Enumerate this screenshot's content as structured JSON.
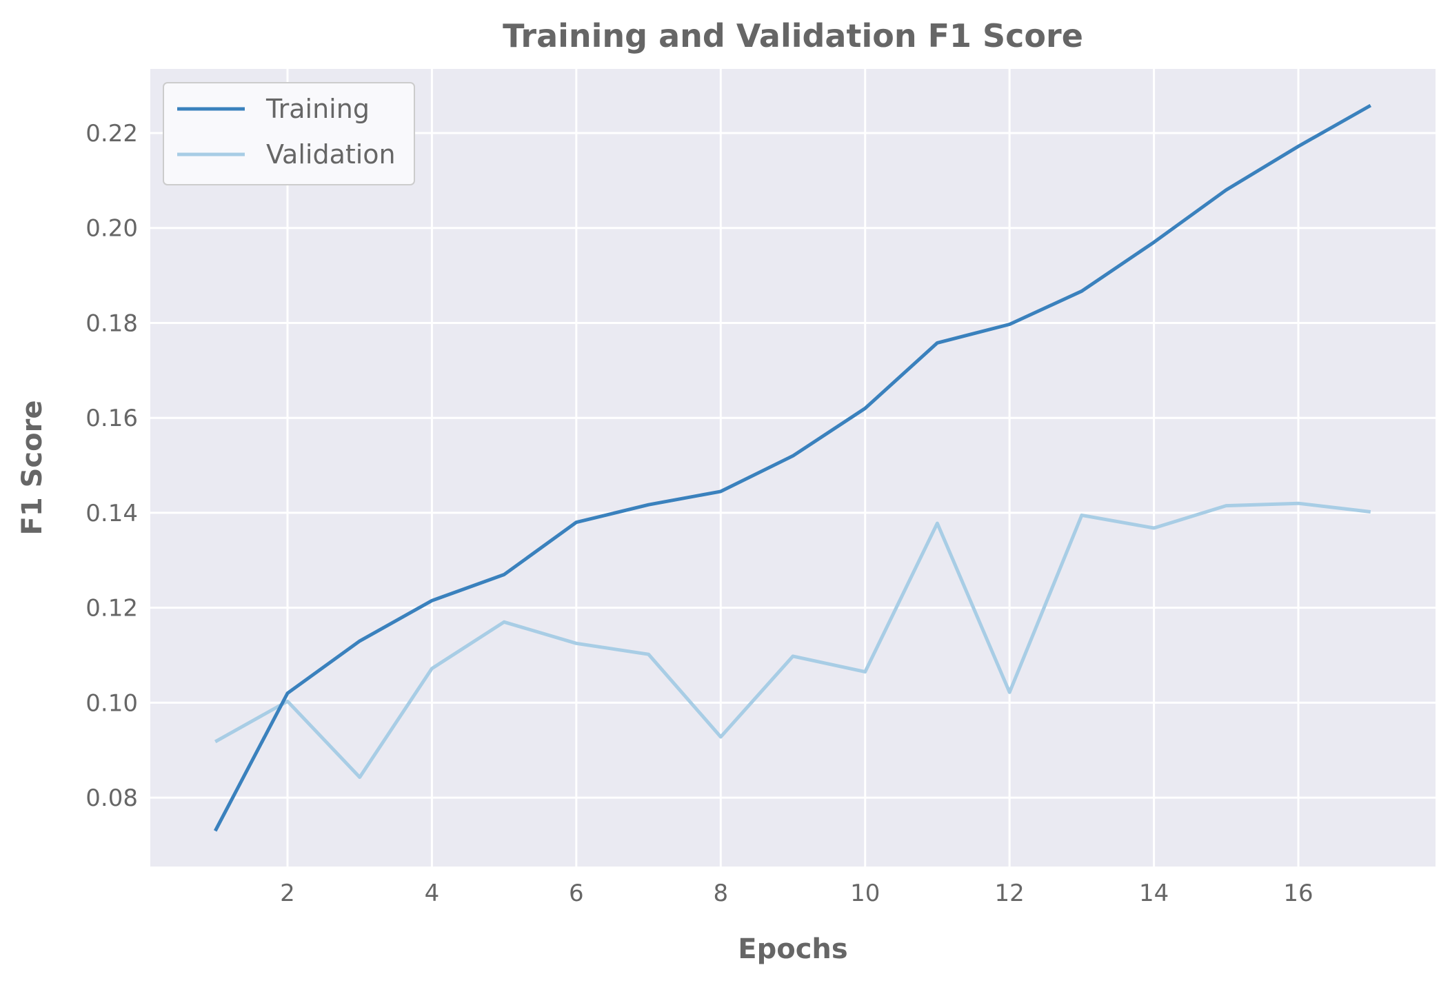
{
  "chart_data": {
    "type": "line",
    "title": "Training and Validation F1 Score",
    "xlabel": "Epochs",
    "ylabel": "F1 Score",
    "xlim": [
      0.1,
      17.9
    ],
    "ylim": [
      0.0655,
      0.2335
    ],
    "xticks": [
      2,
      4,
      6,
      8,
      10,
      12,
      14,
      16
    ],
    "yticks": [
      0.08,
      0.1,
      0.12,
      0.14,
      0.16,
      0.18,
      0.2,
      0.22
    ],
    "xtick_labels": [
      "2",
      "4",
      "6",
      "8",
      "10",
      "12",
      "14",
      "16"
    ],
    "ytick_labels": [
      "0.08",
      "0.10",
      "0.12",
      "0.14",
      "0.16",
      "0.18",
      "0.20",
      "0.22"
    ],
    "grid": true,
    "legend": "top-left",
    "x": [
      1,
      2,
      3,
      4,
      5,
      6,
      7,
      8,
      9,
      10,
      11,
      12,
      13,
      14,
      15,
      16,
      17
    ],
    "series": [
      {
        "name": "Training",
        "color": "#3a81bd",
        "values": [
          0.073,
          0.102,
          0.113,
          0.1215,
          0.127,
          0.138,
          0.1417,
          0.1445,
          0.152,
          0.162,
          0.1758,
          0.1797,
          0.1867,
          0.197,
          0.208,
          0.2172,
          0.2258
        ]
      },
      {
        "name": "Validation",
        "color": "#a8cde5",
        "values": [
          0.0918,
          0.1003,
          0.0843,
          0.1072,
          0.117,
          0.1125,
          0.1102,
          0.0928,
          0.1098,
          0.1065,
          0.1378,
          0.1022,
          0.1395,
          0.1368,
          0.1415,
          0.142,
          0.1402
        ]
      }
    ]
  },
  "colors": {
    "plot_background": "#eaeaf2",
    "grid": "#ffffff",
    "text": "#666666"
  }
}
